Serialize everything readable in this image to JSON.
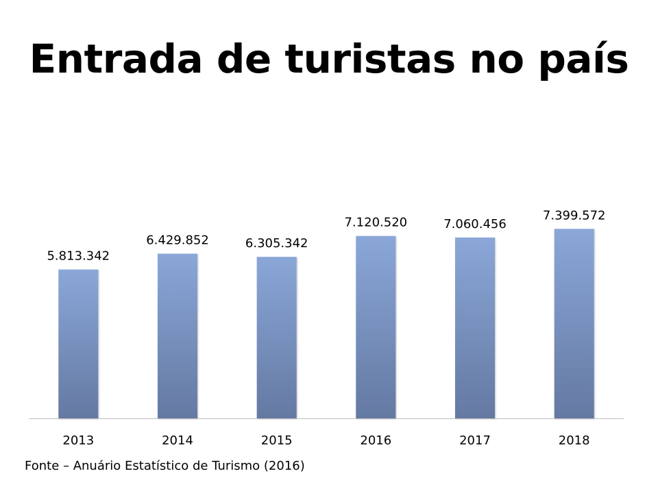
{
  "title": "Entrada de turistas no país",
  "source": "Fonte – Anuário Estatístico de Turismo (2016)",
  "colors": {
    "bar_top": "#8AA7D8",
    "bar_bottom": "#6479A2",
    "axis": "#BFBFBF"
  },
  "chart_data": {
    "type": "bar",
    "title": "Entrada de turistas no país",
    "categories": [
      "2013",
      "2014",
      "2015",
      "2016",
      "2017",
      "2018"
    ],
    "values": [
      5813342,
      6429852,
      6305342,
      7120520,
      7060456,
      7399572
    ],
    "value_labels": [
      "5.813.342",
      "6.429.852",
      "6.305.342",
      "7.120.520",
      "7.060.456",
      "7.399.572"
    ],
    "xlabel": "",
    "ylabel": "",
    "ylim": [
      0,
      8000000
    ],
    "grid": false,
    "legend": "none"
  }
}
